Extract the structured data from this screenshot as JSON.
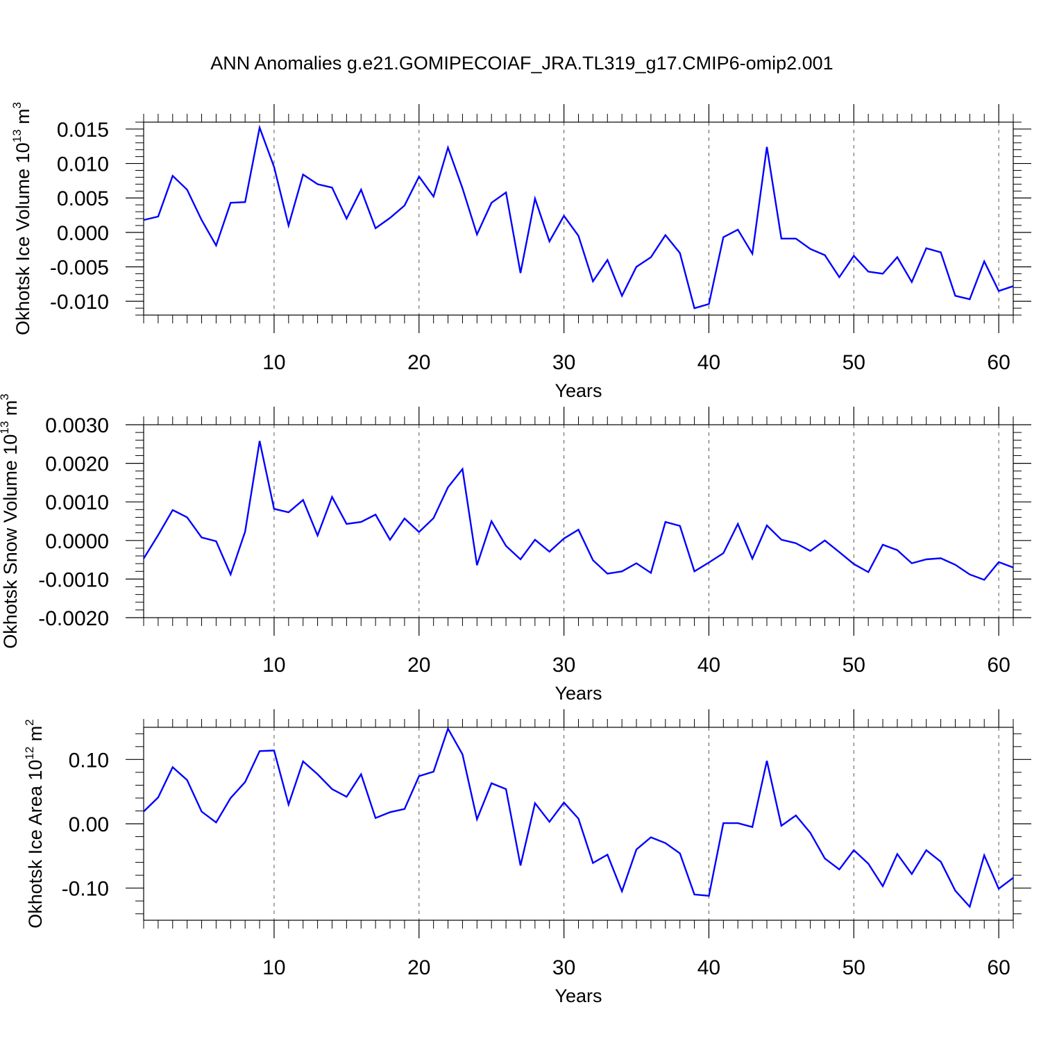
{
  "figure": {
    "title": "ANN Anomalies g.e21.GOMIPECOIAF_JRA.TL319_g17.CMIP6-omip2.001",
    "line_color": "#0000ff",
    "gridline_color": "#555555"
  },
  "chart_data": [
    {
      "type": "line",
      "title": "ANN Anomalies g.e21.GOMIPECOIAF_JRA.TL319_g17.CMIP6-omip2.001",
      "xlabel": "Years",
      "ylabel": "Okhotsk Ice Volume 10^13 m^3",
      "ylabel_parts": {
        "base": "Okhotsk Ice Volume 10",
        "exp": "13",
        "unit": " m",
        "unit_exp": "3"
      },
      "xlim": [
        1,
        61
      ],
      "ylim": [
        -0.012,
        0.016
      ],
      "x_ticks": [
        10,
        20,
        30,
        40,
        50,
        60
      ],
      "x_tick_labels": [
        "10",
        "20",
        "30",
        "40",
        "50",
        "60"
      ],
      "y_ticks": [
        0.015,
        0.01,
        0.005,
        0.0,
        -0.005,
        -0.01
      ],
      "y_tick_labels": [
        "0.015",
        "0.010",
        "0.005",
        "0.000",
        "-0.005",
        "-0.010"
      ],
      "y_minor_step": 0.001,
      "x_vertical_gridlines": [
        10,
        20,
        30,
        40,
        50,
        60
      ],
      "series": [
        {
          "color": "#0000ff",
          "x": [
            1,
            2,
            3,
            4,
            5,
            6,
            7,
            8,
            9,
            10,
            11,
            12,
            13,
            14,
            15,
            16,
            17,
            18,
            19,
            20,
            21,
            22,
            23,
            24,
            25,
            26,
            27,
            28,
            29,
            30,
            31,
            32,
            33,
            34,
            35,
            36,
            37,
            38,
            39,
            40,
            41,
            42,
            43,
            44,
            45,
            46,
            47,
            48,
            49,
            50,
            51,
            52,
            53,
            54,
            55,
            56,
            57,
            58,
            59,
            60,
            61
          ],
          "values": [
            0.0018,
            0.0023,
            0.0082,
            0.0062,
            0.0018,
            -0.0019,
            0.0043,
            0.0044,
            0.0152,
            0.0095,
            0.001,
            0.0084,
            0.007,
            0.0065,
            0.002,
            0.0062,
            0.0006,
            0.0021,
            0.0039,
            0.0081,
            0.0052,
            0.0123,
            0.0064,
            -0.0003,
            0.0043,
            0.0058,
            -0.0059,
            0.0049,
            -0.0013,
            0.0024,
            -0.0005,
            -0.0071,
            -0.004,
            -0.0092,
            -0.005,
            -0.0036,
            -0.0004,
            -0.003,
            -0.011,
            -0.0104,
            -0.0007,
            0.0004,
            -0.0031,
            0.0124,
            -0.0009,
            -0.0009,
            -0.0024,
            -0.0033,
            -0.0065,
            -0.0034,
            -0.0057,
            -0.006,
            -0.0036,
            -0.0072,
            -0.0023,
            -0.0029,
            -0.0092,
            -0.0097,
            -0.0042,
            -0.0085,
            -0.0078
          ]
        }
      ]
    },
    {
      "type": "line",
      "xlabel": "Years",
      "ylabel": "Okhotsk Snow Volume 10^13 m^3",
      "ylabel_parts": {
        "base": "Okhotsk Snow Volume 10",
        "exp": "13",
        "unit": " m",
        "unit_exp": "3"
      },
      "xlim": [
        1,
        61
      ],
      "ylim": [
        -0.002,
        0.003
      ],
      "x_ticks": [
        10,
        20,
        30,
        40,
        50,
        60
      ],
      "x_tick_labels": [
        "10",
        "20",
        "30",
        "40",
        "50",
        "60"
      ],
      "y_ticks": [
        0.003,
        0.002,
        0.001,
        0.0,
        -0.001,
        -0.002
      ],
      "y_tick_labels": [
        "0.0030",
        "0.0020",
        "0.0010",
        "0.0000",
        "-0.0010",
        "-0.0020"
      ],
      "y_minor_step": 0.0002,
      "x_vertical_gridlines": [
        10,
        20,
        30,
        40,
        50,
        60
      ],
      "series": [
        {
          "color": "#0000ff",
          "x": [
            1,
            2,
            3,
            4,
            5,
            6,
            7,
            8,
            9,
            10,
            11,
            12,
            13,
            14,
            15,
            16,
            17,
            18,
            19,
            20,
            21,
            22,
            23,
            24,
            25,
            26,
            27,
            28,
            29,
            30,
            31,
            32,
            33,
            34,
            35,
            36,
            37,
            38,
            39,
            40,
            41,
            42,
            43,
            44,
            45,
            46,
            47,
            48,
            49,
            50,
            51,
            52,
            53,
            54,
            55,
            56,
            57,
            58,
            59,
            60,
            61
          ],
          "values": [
            -0.00047,
            0.00014,
            0.00079,
            0.0006,
            8e-05,
            -2e-05,
            -0.00088,
            0.00023,
            0.00258,
            0.00082,
            0.00073,
            0.00105,
            0.00013,
            0.00113,
            0.00043,
            0.00048,
            0.00067,
            2e-05,
            0.00057,
            0.00022,
            0.00058,
            0.00138,
            0.00185,
            -0.00064,
            0.0005,
            -0.00014,
            -0.00049,
            2e-05,
            -0.00029,
            5e-05,
            0.00028,
            -0.00051,
            -0.00086,
            -0.0008,
            -0.00059,
            -0.00084,
            0.00048,
            0.00038,
            -0.0008,
            -0.00057,
            -0.00033,
            0.00043,
            -0.00047,
            0.00039,
            2e-05,
            -7e-05,
            -0.00027,
            0.0,
            -0.0003,
            -0.00061,
            -0.00082,
            -0.00011,
            -0.00025,
            -0.00059,
            -0.00049,
            -0.00046,
            -0.00063,
            -0.00088,
            -0.00102,
            -0.00056,
            -0.0007
          ]
        }
      ]
    },
    {
      "type": "line",
      "xlabel": "Years",
      "ylabel": "Okhotsk Ice Area 10^12 m^2",
      "ylabel_parts": {
        "base": "Okhotsk Ice Area 10",
        "exp": "12",
        "unit": " m",
        "unit_exp": "2"
      },
      "xlim": [
        1,
        61
      ],
      "ylim": [
        -0.15,
        0.15
      ],
      "x_ticks": [
        10,
        20,
        30,
        40,
        50,
        60
      ],
      "x_tick_labels": [
        "10",
        "20",
        "30",
        "40",
        "50",
        "60"
      ],
      "y_ticks": [
        0.1,
        0.0,
        -0.1
      ],
      "y_tick_labels": [
        "0.10",
        "0.00",
        "-0.10"
      ],
      "y_minor_step": 0.02,
      "x_vertical_gridlines": [
        10,
        20,
        30,
        40,
        50,
        60
      ],
      "series": [
        {
          "color": "#0000ff",
          "x": [
            1,
            2,
            3,
            4,
            5,
            6,
            7,
            8,
            9,
            10,
            11,
            12,
            13,
            14,
            15,
            16,
            17,
            18,
            19,
            20,
            21,
            22,
            23,
            24,
            25,
            26,
            27,
            28,
            29,
            30,
            31,
            32,
            33,
            34,
            35,
            36,
            37,
            38,
            39,
            40,
            41,
            42,
            43,
            44,
            45,
            46,
            47,
            48,
            49,
            50,
            51,
            52,
            53,
            54,
            55,
            56,
            57,
            58,
            59,
            60,
            61
          ],
          "values": [
            0.019,
            0.041,
            0.088,
            0.068,
            0.019,
            0.002,
            0.04,
            0.065,
            0.113,
            0.114,
            0.03,
            0.097,
            0.077,
            0.054,
            0.042,
            0.077,
            0.009,
            0.018,
            0.023,
            0.074,
            0.081,
            0.148,
            0.108,
            0.007,
            0.063,
            0.054,
            -0.065,
            0.032,
            0.003,
            0.033,
            0.008,
            -0.061,
            -0.048,
            -0.105,
            -0.04,
            -0.021,
            -0.03,
            -0.046,
            -0.11,
            -0.112,
            0.001,
            0.001,
            -0.005,
            0.098,
            -0.003,
            0.013,
            -0.014,
            -0.054,
            -0.071,
            -0.041,
            -0.062,
            -0.097,
            -0.047,
            -0.078,
            -0.041,
            -0.059,
            -0.104,
            -0.129,
            -0.049,
            -0.101,
            -0.084
          ]
        }
      ]
    }
  ]
}
